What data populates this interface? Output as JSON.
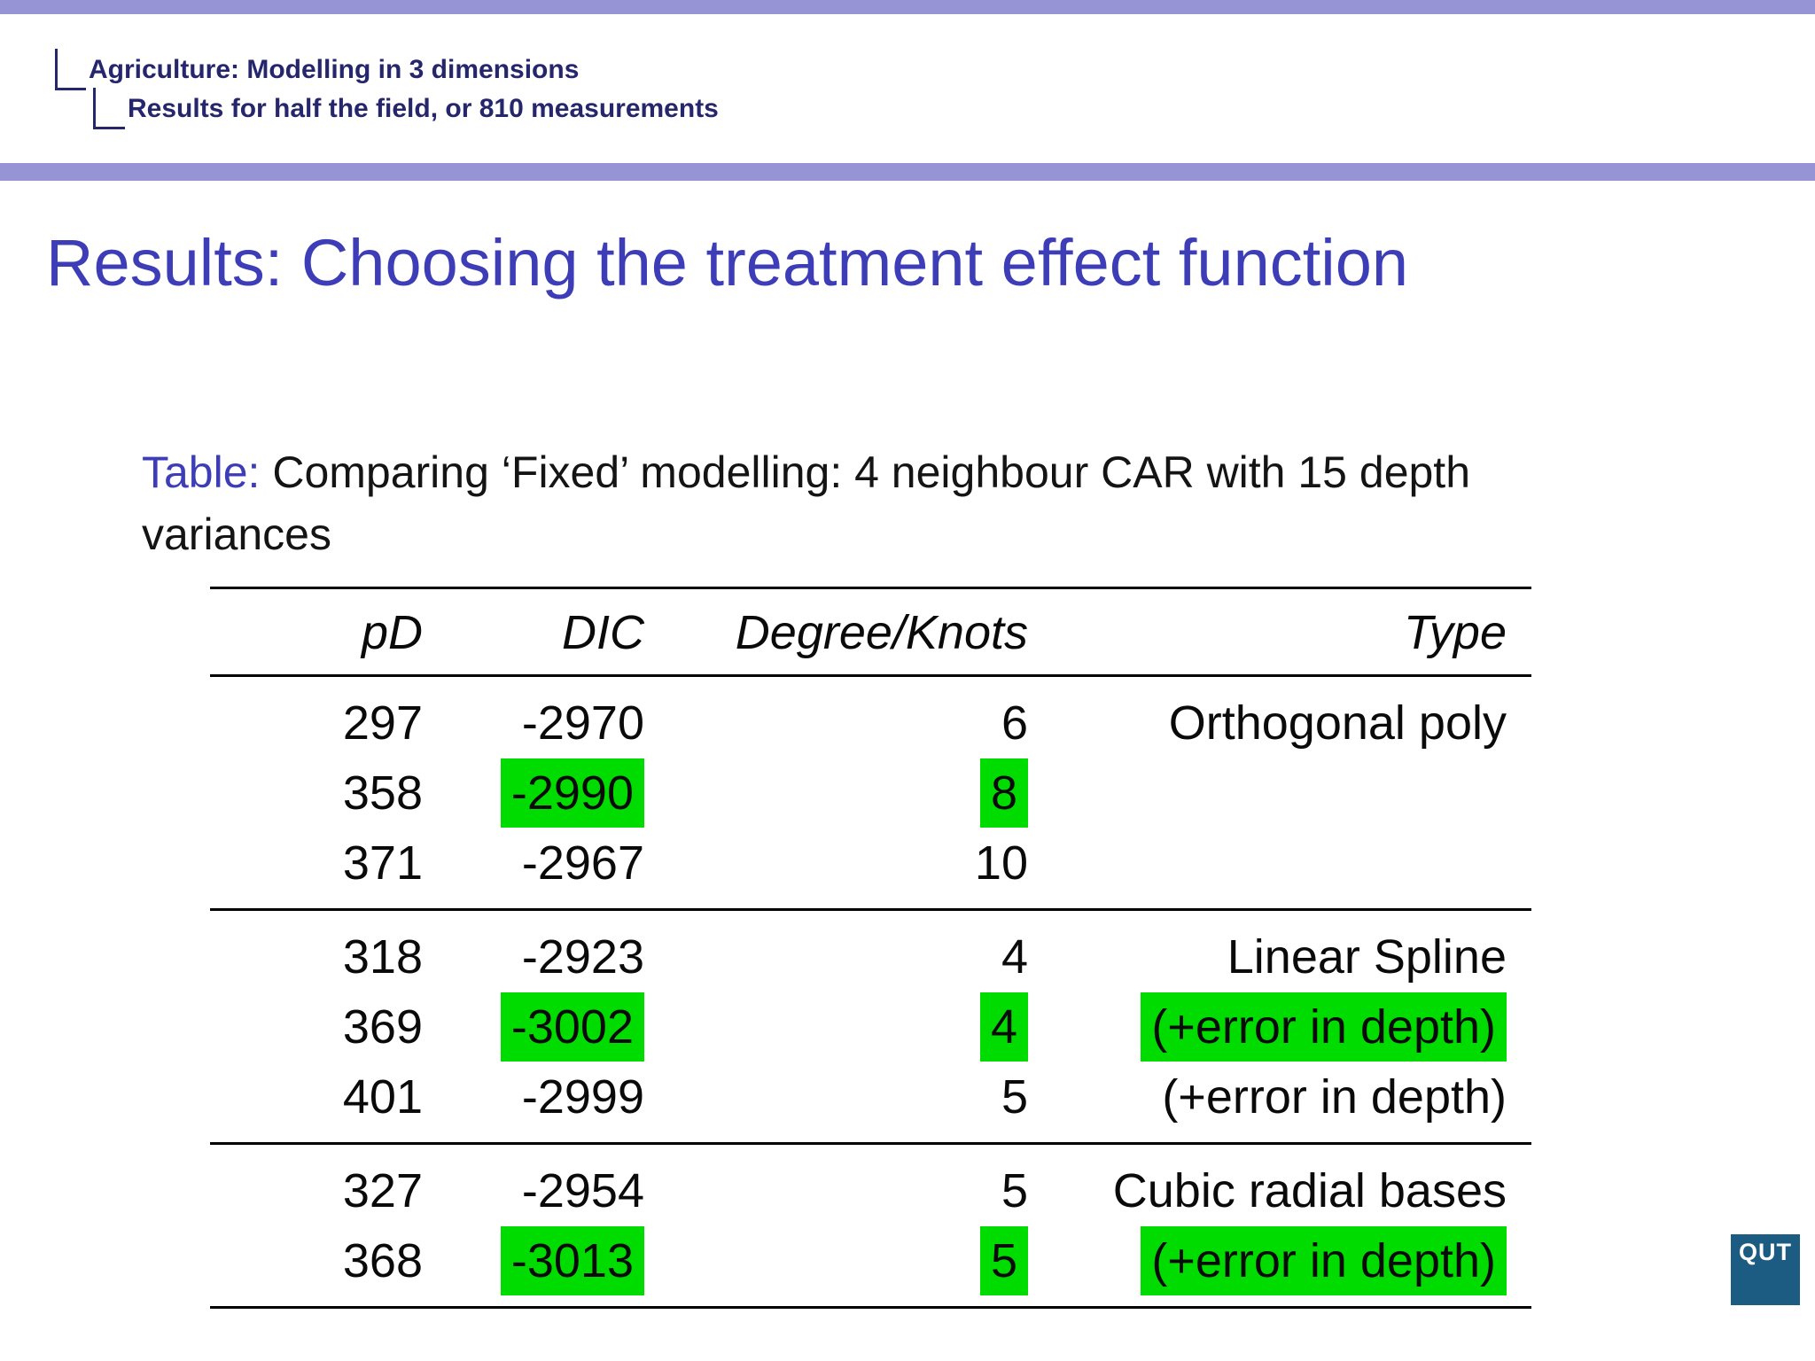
{
  "breadcrumb": {
    "level1": "Agriculture: Modelling in 3 dimensions",
    "level2": "Results for half the field, or 810 measurements"
  },
  "title": "Results: Choosing the treatment effect function",
  "caption": {
    "label": "Table:",
    "text": "Comparing ‘Fixed’ modelling: 4 neighbour CAR with 15 depth variances"
  },
  "logo_text": "QUT",
  "colors": {
    "bar": "#9794d6",
    "breadcrumb": "#26266c",
    "title": "#3d3db8",
    "highlight": "#00dc00",
    "logo_bg": "#1d5c82"
  },
  "chart_data": {
    "type": "table",
    "columns": [
      "pD",
      "DIC",
      "Degree/Knots",
      "Type"
    ],
    "groups": [
      {
        "rows": [
          {
            "cells": [
              {
                "v": "297"
              },
              {
                "v": "-2970"
              },
              {
                "v": "6"
              },
              {
                "v": "Orthogonal poly"
              }
            ]
          },
          {
            "cells": [
              {
                "v": "358"
              },
              {
                "v": "-2990",
                "hl": true
              },
              {
                "v": "8",
                "hl": true
              },
              {
                "v": ""
              }
            ]
          },
          {
            "cells": [
              {
                "v": "371"
              },
              {
                "v": "-2967"
              },
              {
                "v": "10"
              },
              {
                "v": ""
              }
            ]
          }
        ]
      },
      {
        "rows": [
          {
            "cells": [
              {
                "v": "318"
              },
              {
                "v": "-2923"
              },
              {
                "v": "4"
              },
              {
                "v": "Linear Spline"
              }
            ]
          },
          {
            "cells": [
              {
                "v": "369"
              },
              {
                "v": "-3002",
                "hl": true
              },
              {
                "v": "4",
                "hl": true
              },
              {
                "v": "(+error in depth)",
                "hl": true
              }
            ]
          },
          {
            "cells": [
              {
                "v": "401"
              },
              {
                "v": "-2999"
              },
              {
                "v": "5"
              },
              {
                "v": "(+error in depth)"
              }
            ]
          }
        ]
      },
      {
        "rows": [
          {
            "cells": [
              {
                "v": "327"
              },
              {
                "v": "-2954"
              },
              {
                "v": "5"
              },
              {
                "v": "Cubic radial bases"
              }
            ]
          },
          {
            "cells": [
              {
                "v": "368"
              },
              {
                "v": "-3013",
                "hl": true
              },
              {
                "v": "5",
                "hl": true
              },
              {
                "v": "(+error in depth)",
                "hl": true
              }
            ]
          }
        ]
      }
    ]
  }
}
